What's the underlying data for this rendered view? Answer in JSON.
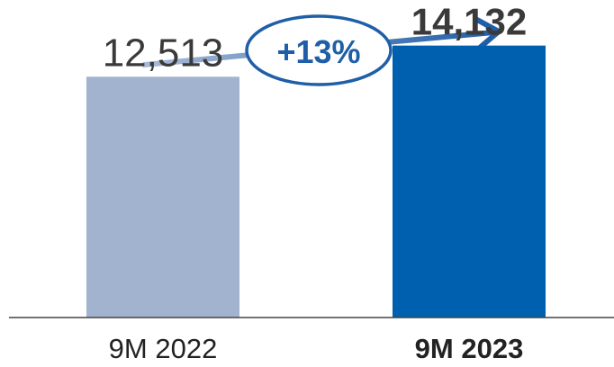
{
  "chart_data": {
    "type": "bar",
    "categories": [
      "9M 2022",
      "9M 2023"
    ],
    "values": [
      12513,
      14132
    ],
    "value_labels": [
      "12,513",
      "14,132"
    ],
    "bar_colors": [
      "#a1b3ce",
      "#0060b0"
    ],
    "emphasized_index": 1,
    "growth_annotation": "+13%",
    "annotation_color": "#1f5fa8",
    "axis_color": "#444444",
    "grid": false,
    "legend": "none",
    "ylim": [
      0,
      16500
    ]
  }
}
